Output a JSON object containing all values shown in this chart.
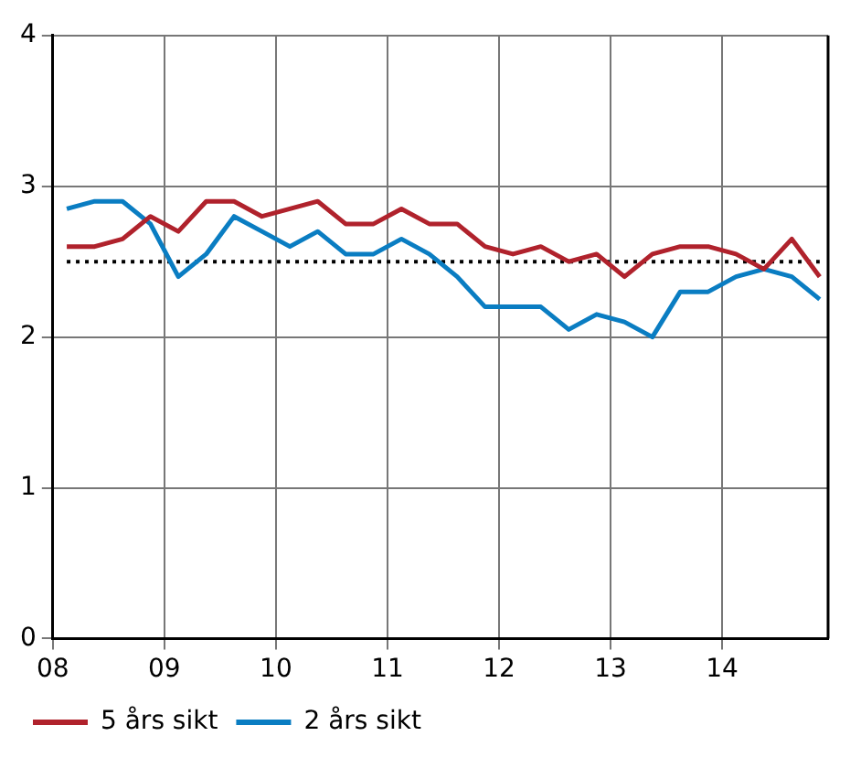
{
  "chart_data": {
    "type": "line",
    "x": [
      2008.125,
      2008.375,
      2008.625,
      2008.875,
      2009.125,
      2009.375,
      2009.625,
      2009.875,
      2010.125,
      2010.375,
      2010.625,
      2010.875,
      2011.125,
      2011.375,
      2011.625,
      2011.875,
      2012.125,
      2012.375,
      2012.625,
      2012.875,
      2013.125,
      2013.375,
      2013.625,
      2013.875,
      2014.125,
      2014.375,
      2014.625,
      2014.875
    ],
    "series": [
      {
        "name": "5 års sikt",
        "color": "#b0222c",
        "values": [
          2.6,
          2.6,
          2.65,
          2.8,
          2.7,
          2.9,
          2.9,
          2.8,
          2.85,
          2.9,
          2.75,
          2.75,
          2.85,
          2.75,
          2.75,
          2.6,
          2.55,
          2.6,
          2.5,
          2.55,
          2.4,
          2.55,
          2.6,
          2.6,
          2.55,
          2.45,
          2.65,
          2.4
        ]
      },
      {
        "name": "2 års sikt",
        "color": "#0a7dc2",
        "values": [
          2.85,
          2.9,
          2.9,
          2.75,
          2.4,
          2.55,
          2.8,
          2.7,
          2.6,
          2.7,
          2.55,
          2.55,
          2.65,
          2.55,
          2.4,
          2.2,
          2.2,
          2.2,
          2.05,
          2.15,
          2.1,
          2.0,
          2.3,
          2.3,
          2.4,
          2.45,
          2.4,
          2.25
        ]
      }
    ],
    "xlim": [
      2008,
      2014.95
    ],
    "xticks": [
      {
        "value": 2008,
        "label": "08"
      },
      {
        "value": 2009,
        "label": "09"
      },
      {
        "value": 2010,
        "label": "10"
      },
      {
        "value": 2011,
        "label": "11"
      },
      {
        "value": 2012,
        "label": "12"
      },
      {
        "value": 2013,
        "label": "13"
      },
      {
        "value": 2014,
        "label": "14"
      }
    ],
    "ylim": [
      0,
      4
    ],
    "yticks": [
      0,
      1,
      2,
      3,
      4
    ],
    "ref_lines": [
      {
        "axis": "y",
        "value": 2.5,
        "color": "#000000",
        "line_style": "dotted"
      }
    ],
    "grid": true,
    "legend": "bottom left",
    "marker": "none",
    "line_style": "solid"
  }
}
